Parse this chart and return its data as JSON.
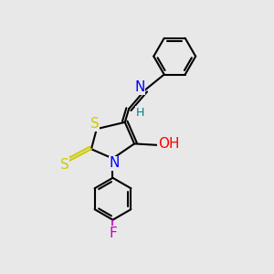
{
  "background_color": "#e8e8e8",
  "bond_color": "#000000",
  "atom_colors": {
    "S": "#cccc00",
    "N": "#0000ff",
    "O": "#ff0000",
    "F": "#cc00cc",
    "H_teal": "#008080",
    "C": "#000000"
  },
  "font_size_atoms": 11,
  "font_size_small": 9,
  "line_width": 1.5,
  "fig_bg": "#e8e8e8"
}
